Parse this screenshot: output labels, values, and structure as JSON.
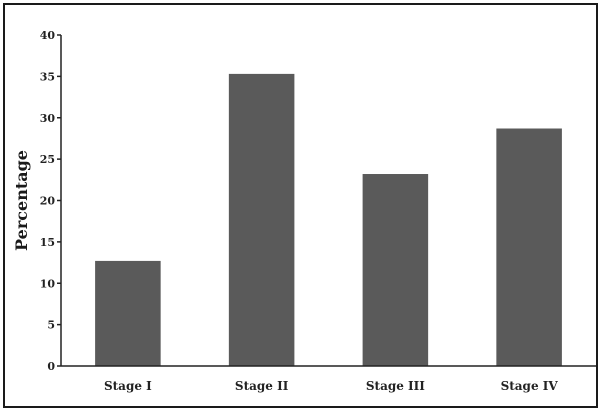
{
  "chart_data": {
    "type": "bar",
    "title": "",
    "xlabel": "",
    "ylabel": "Percentage",
    "categories": [
      "Stage I",
      "Stage II",
      "Stage III",
      "Stage IV"
    ],
    "values": [
      12.7,
      35.3,
      23.2,
      28.7
    ],
    "ylim": [
      0,
      40
    ],
    "yticks": [
      0,
      5,
      10,
      15,
      20,
      25,
      30,
      35,
      40
    ],
    "grid": false,
    "legend": "none",
    "bar_color": "#5a5a5a"
  }
}
